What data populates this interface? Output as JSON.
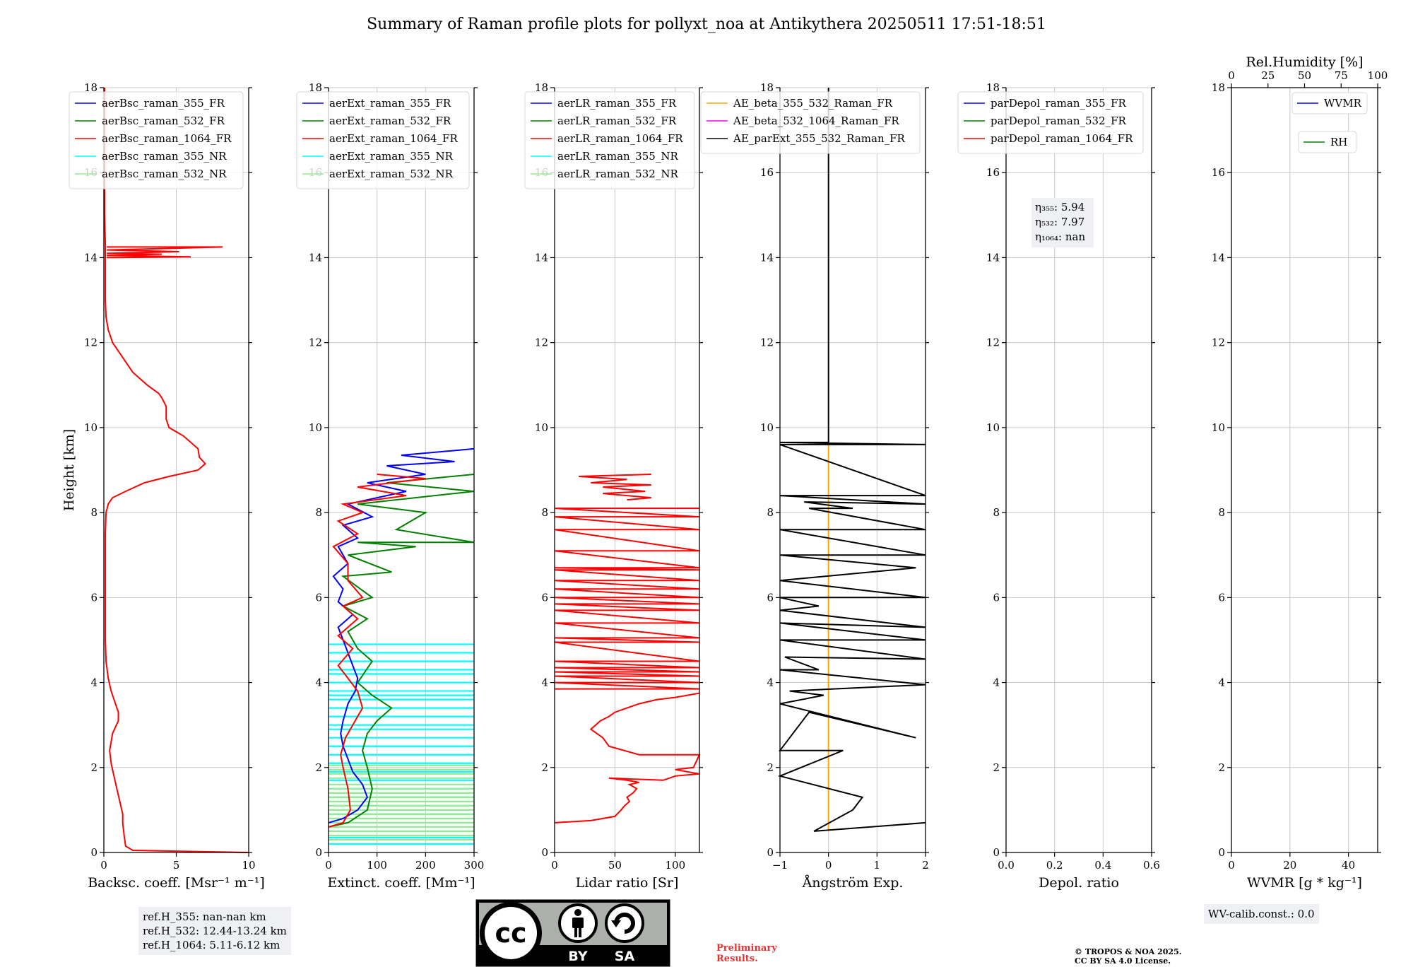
{
  "figure_title": "Summary of Raman profile plots for pollyxt_noa at Antikythera 20250511 17:51-18:51",
  "chart_data": [
    {
      "type": "line",
      "ylabel": "Height [km]",
      "xlabel": "Backsc. coeff. [Msr⁻¹ m⁻¹]",
      "xlim": [
        0,
        10
      ],
      "ylim": [
        0,
        18
      ],
      "xticks": [
        "0",
        "5",
        "10"
      ],
      "yticks": [
        "0",
        "2",
        "4",
        "6",
        "8",
        "10",
        "12",
        "14",
        "16",
        "18"
      ],
      "grid": true,
      "legend_position": "upper-left",
      "legend": [
        {
          "name": "aerBsc_raman_355_FR",
          "color": "#0000ff"
        },
        {
          "name": "aerBsc_raman_532_FR",
          "color": "#008000"
        },
        {
          "name": "aerBsc_raman_1064_FR",
          "color": "#ff0000"
        },
        {
          "name": "aerBsc_raman_355_NR",
          "color": "#00ffff"
        },
        {
          "name": "aerBsc_raman_532_NR",
          "color": "#90ee90"
        }
      ],
      "series": [
        {
          "name": "aerBsc_raman_1064_FR",
          "color": "#ff0000",
          "x": [
            10,
            2.0,
            1.5,
            1.4,
            1.3,
            1.3,
            1.1,
            0.9,
            0.7,
            0.5,
            0.4,
            0.6,
            1.0,
            1.0,
            0.8,
            0.5,
            0.3,
            0.15,
            0.1,
            0.1,
            0.1,
            0.1,
            0.1,
            0.1,
            0.15,
            0.3,
            0.6,
            1.5,
            2.8,
            4.5,
            6.5,
            7.0,
            6.6,
            6.5,
            5.5,
            4.5,
            4.3,
            4.3,
            4.0,
            3.8,
            3.0,
            2.0,
            1.2,
            0.6,
            0.3,
            0.15,
            0.1,
            0.1,
            0.1,
            0.1,
            0.1,
            0.05,
            0.05,
            0.05
          ],
          "y": [
            0.0,
            0.05,
            0.15,
            0.4,
            0.7,
            0.9,
            1.2,
            1.5,
            1.8,
            2.1,
            2.4,
            2.8,
            3.1,
            3.3,
            3.5,
            3.8,
            4.1,
            4.5,
            5.0,
            5.5,
            6.0,
            6.5,
            7.0,
            7.5,
            8.0,
            8.2,
            8.35,
            8.5,
            8.7,
            8.85,
            9.0,
            9.15,
            9.3,
            9.5,
            9.8,
            10.0,
            10.2,
            10.5,
            10.7,
            10.8,
            11.0,
            11.3,
            11.7,
            12.0,
            12.3,
            12.6,
            13.0,
            13.5,
            13.9,
            14.0,
            14.3,
            15.0,
            16.5,
            18.0
          ]
        },
        {
          "name": "aerBsc_raman_1064_FR",
          "color": "#ff0000",
          "x": [
            0.2,
            8.2,
            0.2,
            5.2,
            0.2,
            4.0,
            0.2,
            6.0,
            0.2
          ],
          "y": [
            14.25,
            14.25,
            14.18,
            14.14,
            14.1,
            14.08,
            14.05,
            14.02,
            14.0
          ]
        }
      ],
      "legend_names_only": true
    },
    {
      "type": "line",
      "xlabel": "Extinct. coeff. [Mm⁻¹]",
      "xlim": [
        0,
        300
      ],
      "ylim": [
        0,
        18
      ],
      "xticks": [
        "0",
        "100",
        "200",
        "300"
      ],
      "yticks": [
        "0",
        "2",
        "4",
        "6",
        "8",
        "10",
        "12",
        "14",
        "16",
        "18"
      ],
      "grid": true,
      "legend_position": "upper-left",
      "legend": [
        {
          "name": "aerExt_raman_355_FR",
          "color": "#0000ff"
        },
        {
          "name": "aerExt_raman_532_FR",
          "color": "#008000"
        },
        {
          "name": "aerExt_raman_1064_FR",
          "color": "#ff0000"
        },
        {
          "name": "aerExt_raman_355_NR",
          "color": "#00ffff"
        },
        {
          "name": "aerExt_raman_532_NR",
          "color": "#90ee90"
        }
      ],
      "series": [
        {
          "name": "aerExt_raman_355_FR",
          "color": "#0000ff",
          "x": [
            0,
            30,
            60,
            80,
            70,
            50,
            40,
            30,
            25,
            30,
            40,
            55,
            60,
            50,
            40,
            30,
            20,
            50,
            20,
            30,
            10,
            40,
            20,
            60,
            30,
            90,
            40,
            160,
            80,
            200,
            120,
            260,
            150,
            300
          ],
          "y": [
            0.7,
            0.8,
            1.0,
            1.3,
            1.6,
            1.9,
            2.2,
            2.5,
            2.8,
            3.1,
            3.5,
            3.8,
            4.1,
            4.4,
            4.7,
            5.0,
            5.3,
            5.6,
            5.9,
            6.2,
            6.5,
            6.8,
            7.2,
            7.4,
            7.7,
            7.9,
            8.2,
            8.5,
            8.7,
            8.9,
            9.1,
            9.2,
            9.35,
            9.5
          ]
        },
        {
          "name": "aerExt_raman_532_FR",
          "color": "#008000",
          "x": [
            0,
            40,
            80,
            90,
            80,
            70,
            80,
            100,
            130,
            90,
            60,
            90,
            60,
            40,
            80,
            30,
            90,
            30,
            130,
            40,
            180,
            60,
            300,
            140,
            200,
            60,
            300,
            120,
            300
          ],
          "y": [
            0.6,
            0.7,
            1.0,
            1.5,
            2.0,
            2.4,
            2.8,
            3.1,
            3.4,
            3.7,
            4.0,
            4.5,
            4.8,
            5.2,
            5.5,
            5.8,
            6.0,
            6.5,
            6.6,
            7.0,
            7.2,
            7.3,
            7.3,
            7.6,
            8.0,
            8.2,
            8.5,
            8.7,
            8.9
          ]
        },
        {
          "name": "aerExt_raman_1064_FR",
          "color": "#ff0000",
          "x": [
            0,
            30,
            45,
            40,
            30,
            25,
            35,
            50,
            70,
            60,
            40,
            20,
            50,
            20,
            60,
            30,
            70,
            40,
            40,
            10,
            60,
            20,
            70,
            30,
            160,
            60,
            200,
            100
          ],
          "y": [
            0.6,
            0.7,
            1.0,
            1.5,
            2.0,
            2.3,
            2.7,
            3.0,
            3.4,
            3.8,
            4.1,
            4.4,
            4.8,
            5.1,
            5.5,
            5.8,
            6.0,
            6.4,
            6.8,
            7.2,
            7.5,
            7.8,
            8.0,
            8.2,
            8.4,
            8.6,
            8.8,
            8.9
          ]
        }
      ],
      "bands": [
        {
          "color": "#00ffff",
          "from": 0,
          "to": 300,
          "y": [
            4.9,
            4.7,
            4.5,
            4.3,
            4.2,
            4.0,
            3.8,
            3.7,
            3.6,
            3.4,
            3.2,
            3.0,
            2.9,
            2.7,
            2.5,
            2.3,
            2.1,
            1.9,
            1.7,
            1.5,
            1.3,
            1.1,
            0.9,
            0.7,
            0.5,
            0.35,
            0.2
          ]
        },
        {
          "color": "#90ee90",
          "from": 0,
          "to": 300,
          "y": [
            2.05,
            1.95,
            1.85,
            1.75,
            1.6,
            1.5,
            1.4,
            1.3,
            1.2,
            1.1,
            1.0,
            0.9,
            0.8,
            0.7,
            0.6,
            0.5,
            0.4,
            0.3
          ]
        }
      ]
    },
    {
      "type": "line",
      "xlabel": "Lidar ratio [Sr]",
      "xlim": [
        0,
        120
      ],
      "ylim": [
        0,
        18
      ],
      "xticks": [
        "0",
        "50",
        "100"
      ],
      "yticks": [
        "0",
        "2",
        "4",
        "6",
        "8",
        "10",
        "12",
        "14",
        "16",
        "18"
      ],
      "grid": true,
      "legend_position": "upper-left",
      "legend": [
        {
          "name": "aerLR_raman_355_FR",
          "color": "#0000ff"
        },
        {
          "name": "aerLR_raman_532_FR",
          "color": "#008000"
        },
        {
          "name": "aerLR_raman_1064_FR",
          "color": "#ff0000"
        },
        {
          "name": "aerLR_raman_355_NR",
          "color": "#00ffff"
        },
        {
          "name": "aerLR_raman_532_NR",
          "color": "#90ee90"
        }
      ],
      "series": [
        {
          "name": "aerLR_raman_1064_FR",
          "color": "#ff0000",
          "x": [
            0,
            30,
            50,
            55,
            58,
            62,
            60,
            65,
            68,
            62,
            70,
            60,
            45,
            90,
            100,
            120,
            100,
            115,
            120,
            70,
            45,
            40,
            35,
            30,
            38,
            45,
            50,
            60,
            70,
            85,
            100,
            110,
            120
          ],
          "y": [
            0.7,
            0.75,
            0.85,
            1.0,
            1.1,
            1.2,
            1.3,
            1.4,
            1.5,
            1.6,
            1.65,
            1.7,
            1.75,
            1.7,
            1.8,
            1.85,
            1.95,
            2.0,
            2.3,
            2.3,
            2.5,
            2.7,
            2.8,
            2.9,
            3.1,
            3.2,
            3.3,
            3.4,
            3.5,
            3.6,
            3.65,
            3.7,
            3.75
          ]
        },
        {
          "name": "aerLR_raman_1064_FR",
          "color": "#ff0000",
          "x": [
            0,
            120,
            0,
            120,
            0,
            120,
            0,
            120,
            0,
            120,
            0,
            120,
            0,
            120,
            0,
            120,
            0,
            120,
            0,
            120,
            0,
            120,
            0,
            120,
            0,
            120,
            0,
            120,
            0,
            120,
            0,
            120,
            0,
            120,
            0,
            120,
            0,
            120,
            0,
            120
          ],
          "y": [
            3.85,
            3.85,
            4.0,
            4.0,
            4.15,
            4.15,
            4.25,
            4.25,
            4.35,
            4.35,
            4.5,
            4.5,
            4.95,
            4.95,
            5.05,
            5.05,
            5.4,
            5.4,
            5.7,
            5.7,
            5.85,
            5.85,
            6.0,
            6.0,
            6.2,
            6.2,
            6.4,
            6.4,
            6.65,
            6.65,
            6.7,
            6.7,
            7.1,
            7.1,
            7.6,
            7.6,
            7.9,
            7.9,
            8.1,
            8.1
          ]
        },
        {
          "name": "aerLR_raman_1064_FR",
          "color": "#ff0000",
          "x": [
            60,
            80,
            40,
            75,
            40,
            80,
            30,
            60,
            20,
            80
          ],
          "y": [
            8.3,
            8.35,
            8.45,
            8.5,
            8.6,
            8.65,
            8.7,
            8.78,
            8.85,
            8.9
          ]
        }
      ]
    },
    {
      "type": "line",
      "xlabel": "Ångström Exp.",
      "xlim": [
        -1,
        2
      ],
      "ylim": [
        0,
        18
      ],
      "xticks": [
        "−1",
        "0",
        "1",
        "2"
      ],
      "yticks": [
        "0",
        "2",
        "4",
        "6",
        "8",
        "10",
        "12",
        "14",
        "16",
        "18"
      ],
      "grid": true,
      "legend_position": "upper-left",
      "legend": [
        {
          "name": "AE_beta_355_532_Raman_FR",
          "color": "#ffa500"
        },
        {
          "name": "AE_beta_532_1064_Raman_FR",
          "color": "#ff00ff"
        },
        {
          "name": "AE_parExt_355_532_Raman_FR",
          "color": "#000000"
        }
      ],
      "series": [
        {
          "name": "AE_beta_355_532_Raman_FR",
          "color": "#ffa500",
          "x": [
            0,
            0
          ],
          "y": [
            0.5,
            9.6
          ]
        },
        {
          "name": "AE_parExt_355_532_Raman_FR",
          "color": "#000000",
          "x": [
            2,
            -0.3,
            0.5,
            0.7,
            -1,
            0.3,
            -1,
            -0.4,
            1.8,
            -1,
            -0.1,
            -0.8,
            2,
            -1,
            -0.2,
            -0.9,
            2,
            -1,
            2,
            -1,
            2,
            -1,
            -0.2,
            -1,
            2,
            -1,
            1.8,
            -1,
            2,
            -1,
            2,
            -0.4,
            0.5,
            -0.5,
            2,
            -1,
            2,
            -1,
            2,
            -1,
            0,
            0,
            0
          ],
          "y": [
            0.7,
            0.5,
            1.0,
            1.3,
            1.8,
            2.4,
            2.4,
            3.3,
            2.7,
            3.5,
            3.7,
            3.8,
            3.95,
            4.3,
            4.3,
            4.6,
            4.55,
            5.0,
            5.0,
            5.4,
            5.3,
            5.7,
            5.8,
            6.0,
            6.0,
            6.4,
            6.7,
            7.0,
            7.0,
            7.6,
            7.6,
            8.1,
            8.1,
            8.25,
            8.2,
            8.4,
            8.4,
            9.6,
            9.6,
            9.65,
            9.65,
            12,
            18
          ]
        }
      ]
    },
    {
      "type": "line",
      "xlabel": "Depol. ratio",
      "xlim": [
        0,
        0.6
      ],
      "ylim": [
        0,
        18
      ],
      "xticks": [
        "0.0",
        "0.2",
        "0.4",
        "0.6"
      ],
      "yticks": [
        "0",
        "2",
        "4",
        "6",
        "8",
        "10",
        "12",
        "14",
        "16",
        "18"
      ],
      "grid": true,
      "legend_position": "upper-left",
      "legend": [
        {
          "name": "parDepol_raman_355_FR",
          "color": "#0000ff"
        },
        {
          "name": "parDepol_raman_532_FR",
          "color": "#008000"
        },
        {
          "name": "parDepol_raman_1064_FR",
          "color": "#ff0000"
        }
      ],
      "annotation": [
        "η₃₅₅: 5.94",
        "η₅₃₂: 7.97",
        "η₁₀₆₄: nan"
      ],
      "series": []
    },
    {
      "type": "line",
      "xlabel": "WVMR [g * kg⁻¹]",
      "xlim": [
        0,
        50
      ],
      "ylim": [
        0,
        18
      ],
      "xticks": [
        "0",
        "20",
        "40"
      ],
      "yticks": [
        "0",
        "2",
        "4",
        "6",
        "8",
        "10",
        "12",
        "14",
        "16",
        "18"
      ],
      "top_axis_label": "Rel.Humidity [%]",
      "top_xticks": [
        "0",
        "25",
        "50",
        "75",
        "100"
      ],
      "grid": true,
      "legend": [
        {
          "name": "WVMR",
          "color": "#0000ff"
        },
        {
          "name": "RH",
          "color": "#008000"
        }
      ],
      "series": []
    }
  ],
  "ref_box": [
    "ref.H_355: nan-nan km",
    "ref.H_532: 12.44-13.24 km",
    "ref.H_1064: 5.11-6.12 km"
  ],
  "wv_calib": "WV-calib.const.: 0.0",
  "cc_badge": {
    "by": "BY",
    "sa": "SA"
  },
  "preliminary": [
    "Preliminary",
    "Results."
  ],
  "copyright": [
    "© TROPOS & NOA 2025.",
    "CC BY SA 4.0 License."
  ]
}
